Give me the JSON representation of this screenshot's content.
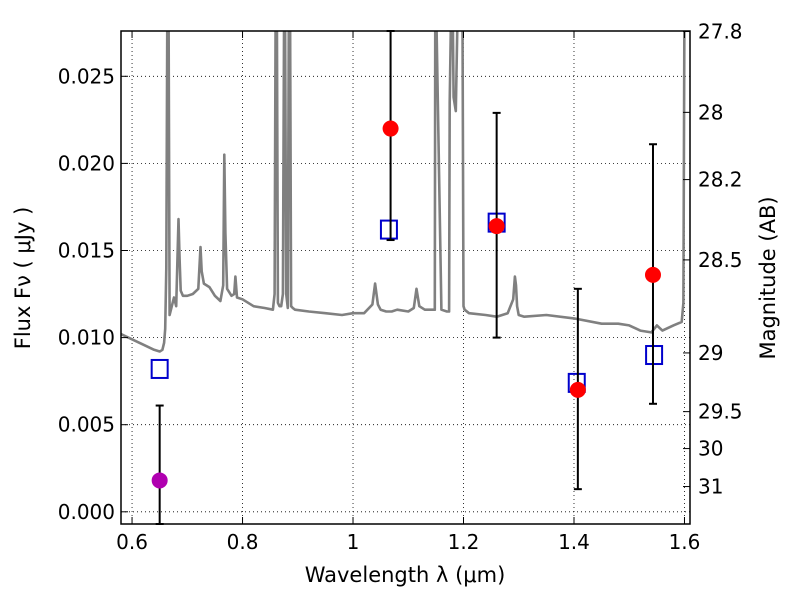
{
  "chart_data": {
    "type": "scatter",
    "title": "",
    "xlabel": "Wavelength  λ (μm)",
    "ylabel": "Flux  Fν  ( μJy )",
    "ylabel_right": "Magnitude (AB)",
    "xlim": [
      0.58,
      1.61
    ],
    "ylim": [
      -0.0007,
      0.0276
    ],
    "grid": true,
    "grid_style": "dotted",
    "x_ticks": [
      0.6,
      0.8,
      1.0,
      1.2,
      1.4,
      1.6
    ],
    "x_tick_labels": [
      "0.6",
      "0.8",
      "1",
      "1.2",
      "1.4",
      "1.6"
    ],
    "y_ticks": [
      0.0,
      0.005,
      0.01,
      0.015,
      0.02,
      0.025
    ],
    "y_tick_labels": [
      "0.000",
      "0.005",
      "0.010",
      "0.015",
      "0.020",
      "0.025"
    ],
    "right_ticks": [
      {
        "label": "27.8",
        "flux": 0.02757
      },
      {
        "label": "28",
        "flux": 0.02293
      },
      {
        "label": "28.2",
        "flux": 0.01907
      },
      {
        "label": "28.5",
        "flux": 0.01446
      },
      {
        "label": "29",
        "flux": 0.00912
      },
      {
        "label": "29.5",
        "flux": 0.00575
      },
      {
        "label": "30",
        "flux": 0.00363
      },
      {
        "label": "31",
        "flux": 0.00145
      }
    ],
    "series": [
      {
        "kind": "line",
        "color": "#808080",
        "x": [
          0.58,
          0.6,
          0.62,
          0.64,
          0.65,
          0.655,
          0.658,
          0.66,
          0.662,
          0.664,
          0.666,
          0.668,
          0.672,
          0.676,
          0.68,
          0.684,
          0.686,
          0.688,
          0.692,
          0.7,
          0.71,
          0.72,
          0.724,
          0.726,
          0.73,
          0.74,
          0.75,
          0.76,
          0.765,
          0.767,
          0.769,
          0.772,
          0.78,
          0.785,
          0.787,
          0.79,
          0.8,
          0.82,
          0.84,
          0.855,
          0.858,
          0.86,
          0.862,
          0.864,
          0.867,
          0.87,
          0.873,
          0.875,
          0.877,
          0.879,
          0.882,
          0.884,
          0.886,
          0.888,
          0.891,
          0.895,
          0.92,
          0.95,
          0.98,
          1.0,
          1.02,
          1.035,
          1.04,
          1.045,
          1.05,
          1.06,
          1.07,
          1.08,
          1.1,
          1.11,
          1.115,
          1.12,
          1.13,
          1.148,
          1.149,
          1.15,
          1.16,
          1.17,
          1.174,
          1.175,
          1.178,
          1.18,
          1.182,
          1.186,
          1.19,
          1.195,
          1.198,
          1.2,
          1.202,
          1.21,
          1.24,
          1.26,
          1.28,
          1.29,
          1.293,
          1.295,
          1.297,
          1.3,
          1.31,
          1.35,
          1.4,
          1.45,
          1.48,
          1.5,
          1.52,
          1.54,
          1.55,
          1.56,
          1.58,
          1.595,
          1.598,
          1.6,
          1.605,
          1.61
        ],
        "y": [
          0.0102,
          0.0099,
          0.0096,
          0.0093,
          0.0092,
          0.0093,
          0.0097,
          0.0105,
          0.014,
          0.03,
          0.03,
          0.0113,
          0.0118,
          0.0123,
          0.0118,
          0.0168,
          0.0145,
          0.0127,
          0.0124,
          0.0124,
          0.0125,
          0.0128,
          0.0152,
          0.0138,
          0.0131,
          0.0129,
          0.0124,
          0.0121,
          0.013,
          0.0205,
          0.016,
          0.0128,
          0.0124,
          0.0125,
          0.0135,
          0.0123,
          0.0122,
          0.0118,
          0.0117,
          0.0116,
          0.0125,
          0.03,
          0.03,
          0.012,
          0.0118,
          0.0118,
          0.0125,
          0.0275,
          0.028,
          0.0125,
          0.0117,
          0.03,
          0.03,
          0.0118,
          0.0117,
          0.0116,
          0.0115,
          0.0114,
          0.0113,
          0.0114,
          0.0114,
          0.0119,
          0.0131,
          0.0119,
          0.0116,
          0.0115,
          0.0115,
          0.0116,
          0.0115,
          0.0117,
          0.0128,
          0.0118,
          0.0116,
          0.0116,
          0.03,
          0.03,
          0.0116,
          0.0115,
          0.0115,
          0.0235,
          0.03,
          0.03,
          0.0238,
          0.023,
          0.03,
          0.03,
          0.03,
          0.0118,
          0.0116,
          0.0114,
          0.0113,
          0.0112,
          0.0114,
          0.0122,
          0.0135,
          0.013,
          0.0118,
          0.0113,
          0.0112,
          0.0113,
          0.0111,
          0.0108,
          0.0108,
          0.0107,
          0.0104,
          0.0103,
          0.0107,
          0.0104,
          0.0107,
          0.0109,
          0.012,
          0.03,
          0.03,
          0.03
        ]
      },
      {
        "kind": "points",
        "marker": "open-square",
        "color": "#0000cc",
        "x": [
          0.65,
          1.065,
          1.26,
          1.405,
          1.545
        ],
        "y": [
          0.0082,
          0.0162,
          0.0166,
          0.0074,
          0.009
        ]
      },
      {
        "kind": "points-errorbar",
        "marker": "filled-circle",
        "color": "#ff0000",
        "x": [
          1.068,
          1.26,
          1.407,
          1.543
        ],
        "y": [
          0.022,
          0.0164,
          0.007,
          0.0136
        ],
        "yerr_low": [
          0.0156,
          0.01,
          0.0013,
          0.0062
        ],
        "yerr_high": [
          0.0276,
          0.0229,
          0.0128,
          0.0211
        ]
      },
      {
        "kind": "points-errorbar",
        "marker": "filled-circle",
        "color": "#b000b0",
        "x": [
          0.65
        ],
        "y": [
          0.0018
        ],
        "yerr_low": [
          -0.0007
        ],
        "yerr_high": [
          0.0061
        ]
      }
    ]
  }
}
